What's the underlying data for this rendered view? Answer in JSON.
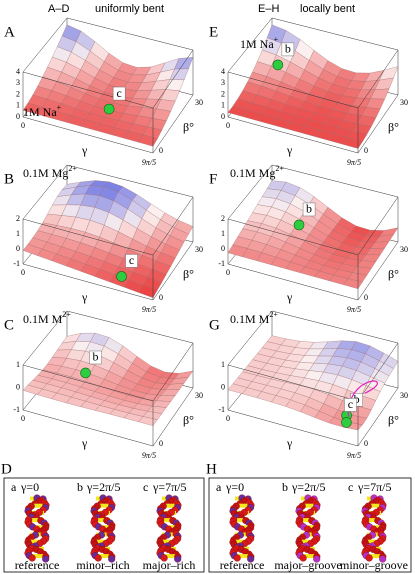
{
  "header": {
    "left": "A–D",
    "left_title": "uniformly bent",
    "right": "E–H",
    "right_title": "locally bent"
  },
  "panels": [
    {
      "letter": "A",
      "condition": {
        "base": "1M Na",
        "sup": "+"
      },
      "marker": "c",
      "x_label": "γ",
      "y_label": "β°",
      "x_ticks": [
        "0",
        "9π/5"
      ],
      "y_ticks": [
        "0",
        "30"
      ],
      "z_ticks": [
        "4",
        "3",
        "2",
        "1",
        "0"
      ]
    },
    {
      "letter": "B",
      "condition": {
        "base": "0.1M Mg",
        "sup": "2+"
      },
      "marker": "c",
      "x_label": "γ",
      "y_label": "β°",
      "x_ticks": [
        "0",
        "9π/5"
      ],
      "y_ticks": [
        "0",
        "30"
      ],
      "z_ticks": [
        "2",
        "1",
        "0",
        "-1"
      ]
    },
    {
      "letter": "C",
      "condition": {
        "base": "0.1M M",
        "sup": "2+"
      },
      "marker": "b",
      "x_label": "γ",
      "y_label": "β°",
      "x_ticks": [
        "0",
        "9π/5"
      ],
      "y_ticks": [
        "0",
        "30"
      ],
      "z_ticks": [
        "1",
        "0",
        "-1"
      ]
    },
    {
      "letter": "E",
      "condition": {
        "base": "1M Na",
        "sup": "+"
      },
      "marker": "b",
      "x_label": "γ",
      "y_label": "β°",
      "x_ticks": [
        "0",
        "9π/5"
      ],
      "y_ticks": [
        "0",
        "30"
      ],
      "z_ticks": [
        "4",
        "3",
        "2",
        "1",
        "0"
      ]
    },
    {
      "letter": "F",
      "condition": {
        "base": "0.1M Mg",
        "sup": "2+"
      },
      "marker": "b",
      "x_label": "γ",
      "y_label": "β°",
      "x_ticks": [
        "0",
        "9π/5"
      ],
      "y_ticks": [
        "0",
        "30"
      ],
      "z_ticks": [
        "2",
        "1",
        "0",
        "-1"
      ]
    },
    {
      "letter": "G",
      "condition": {
        "base": "0.1M M",
        "sup": "2+"
      },
      "marker": "b",
      "marker2": "c",
      "x_label": "γ",
      "y_label": "β°",
      "x_ticks": [
        "0",
        "9π/5"
      ],
      "y_ticks": [
        "0",
        "30"
      ],
      "z_ticks": [
        "1",
        "0",
        "-1"
      ]
    }
  ],
  "structures": [
    {
      "letter": "D",
      "items": [
        {
          "label": "a",
          "gamma": "γ=0",
          "caption": "reference"
        },
        {
          "label": "b",
          "gamma": "γ=2π/5",
          "caption": "minor–rich"
        },
        {
          "label": "c",
          "gamma": "γ=7π/5",
          "caption": "major–rich"
        }
      ]
    },
    {
      "letter": "H",
      "items": [
        {
          "label": "a",
          "gamma": "γ=0",
          "caption": "reference"
        },
        {
          "label": "b",
          "gamma": "γ=2π/5",
          "caption": "major–groove"
        },
        {
          "label": "c",
          "gamma": "γ=7π/5",
          "caption": "minor–groove"
        }
      ]
    }
  ]
}
